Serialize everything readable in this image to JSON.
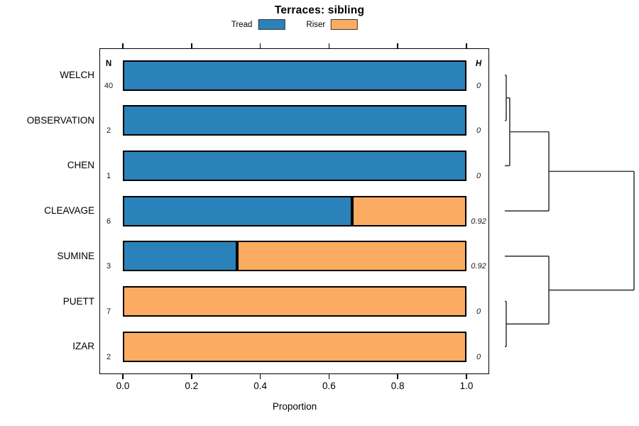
{
  "figure": {
    "title": "Terraces: sibling",
    "background": "#ffffff"
  },
  "legend": {
    "items": [
      {
        "label": "Tread",
        "color": "#2B81B9"
      },
      {
        "label": "Riser",
        "color": "#FCAC62"
      }
    ]
  },
  "columns": {
    "n_header": "N",
    "h_header": "H"
  },
  "axis": {
    "xlabel": "Proportion",
    "xticks": [
      "0.0",
      "0.2",
      "0.4",
      "0.6",
      "0.8",
      "1.0"
    ]
  },
  "chart_data": {
    "type": "bar",
    "orientation": "horizontal_stacked",
    "title": "Terraces: sibling",
    "xlabel": "Proportion",
    "xlim": [
      0,
      1
    ],
    "xticks": [
      0,
      0.2,
      0.4,
      0.6,
      0.8,
      1
    ],
    "grid": false,
    "series": [
      {
        "name": "Tread",
        "color": "#2B81B9"
      },
      {
        "name": "Riser",
        "color": "#FCAC62"
      }
    ],
    "categories": [
      "WELCH",
      "OBSERVATION",
      "CHEN",
      "CLEAVAGE",
      "SUMINE",
      "PUETT",
      "IZAR"
    ],
    "rows": [
      {
        "label": "WELCH",
        "n": "40",
        "tread": 1,
        "riser": 0,
        "h": "0"
      },
      {
        "label": "OBSERVATION",
        "n": "2",
        "tread": 1,
        "riser": 0,
        "h": "0"
      },
      {
        "label": "CHEN",
        "n": "1",
        "tread": 1,
        "riser": 0,
        "h": "0"
      },
      {
        "label": "CLEAVAGE",
        "n": "6",
        "tread": 0.667,
        "riser": 0.333,
        "h": "0.92"
      },
      {
        "label": "SUMINE",
        "n": "3",
        "tread": 0.333,
        "riser": 0.667,
        "h": "0.92"
      },
      {
        "label": "PUETT",
        "n": "7",
        "tread": 0,
        "riser": 1,
        "h": "0"
      },
      {
        "label": "IZAR",
        "n": "2",
        "tread": 0,
        "riser": 1,
        "h": "0"
      }
    ],
    "dendrogram": {
      "position": "right",
      "line_color": "#3c3c3c",
      "merges": [
        {
          "a": "L0",
          "b": "L1",
          "height": 0.011
        },
        {
          "a": "M0",
          "b": "L2",
          "height": 0.038
        },
        {
          "a": "M1",
          "b": "L3",
          "height": 0.341
        },
        {
          "a": "L5",
          "b": "L6",
          "height": 0.011
        },
        {
          "a": "L4",
          "b": "M3",
          "height": 0.341
        },
        {
          "a": "M2",
          "b": "M4",
          "height": 1.0
        }
      ]
    }
  }
}
